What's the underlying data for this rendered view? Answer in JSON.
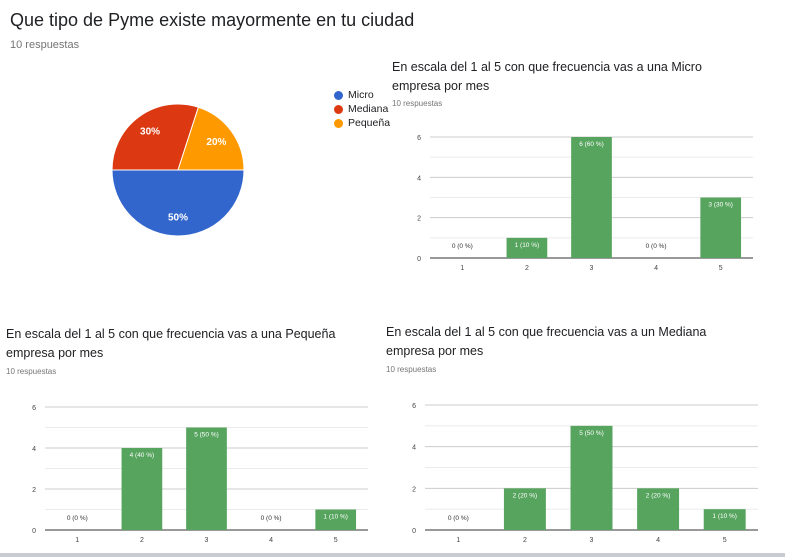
{
  "chart_data": [
    {
      "type": "pie",
      "title": "Que tipo de Pyme existe mayormente en tu ciudad",
      "responses": "10 respuestas",
      "labels": [
        "Micro",
        "Mediana",
        "Pequeña"
      ],
      "values": [
        50,
        30,
        20
      ],
      "value_labels": [
        "50%",
        "30%",
        "20%"
      ],
      "colors": [
        "#3366cc",
        "#dc3912",
        "#ff9900"
      ],
      "legend_position": "right"
    },
    {
      "type": "bar",
      "title": "En escala del 1 al 5 con que frecuencia vas a una Micro empresa por mes",
      "responses": "10 respuestas",
      "categories": [
        "1",
        "2",
        "3",
        "4",
        "5"
      ],
      "values": [
        0,
        1,
        6,
        0,
        3
      ],
      "value_labels": [
        "0 (0 %)",
        "1 (10 %)",
        "6 (60 %)",
        "0 (0 %)",
        "3 (30 %)"
      ],
      "yticks": [
        "0",
        "2",
        "4",
        "6"
      ],
      "ylim": [
        0,
        6
      ],
      "color": "#57a45f"
    },
    {
      "type": "bar",
      "title": "En escala del 1 al 5 con que frecuencia vas a una Pequeña empresa por mes",
      "responses": "10 respuestas",
      "categories": [
        "1",
        "2",
        "3",
        "4",
        "5"
      ],
      "values": [
        0,
        4,
        5,
        0,
        1
      ],
      "value_labels": [
        "0 (0 %)",
        "4 (40 %)",
        "5 (50 %)",
        "0 (0 %)",
        "1 (10 %)"
      ],
      "yticks": [
        "0",
        "2",
        "4",
        "6"
      ],
      "ylim": [
        0,
        6
      ],
      "color": "#57a45f"
    },
    {
      "type": "bar",
      "title": "En escala del 1 al 5 con que frecuencia vas a un Mediana empresa por mes",
      "responses": "10 respuestas",
      "categories": [
        "1",
        "2",
        "3",
        "4",
        "5"
      ],
      "values": [
        0,
        2,
        5,
        2,
        1
      ],
      "value_labels": [
        "0 (0 %)",
        "2 (20 %)",
        "5 (50 %)",
        "2 (20 %)",
        "1 (10 %)"
      ],
      "yticks": [
        "0",
        "2",
        "4",
        "6"
      ],
      "ylim": [
        0,
        6
      ],
      "color": "#57a45f"
    }
  ]
}
